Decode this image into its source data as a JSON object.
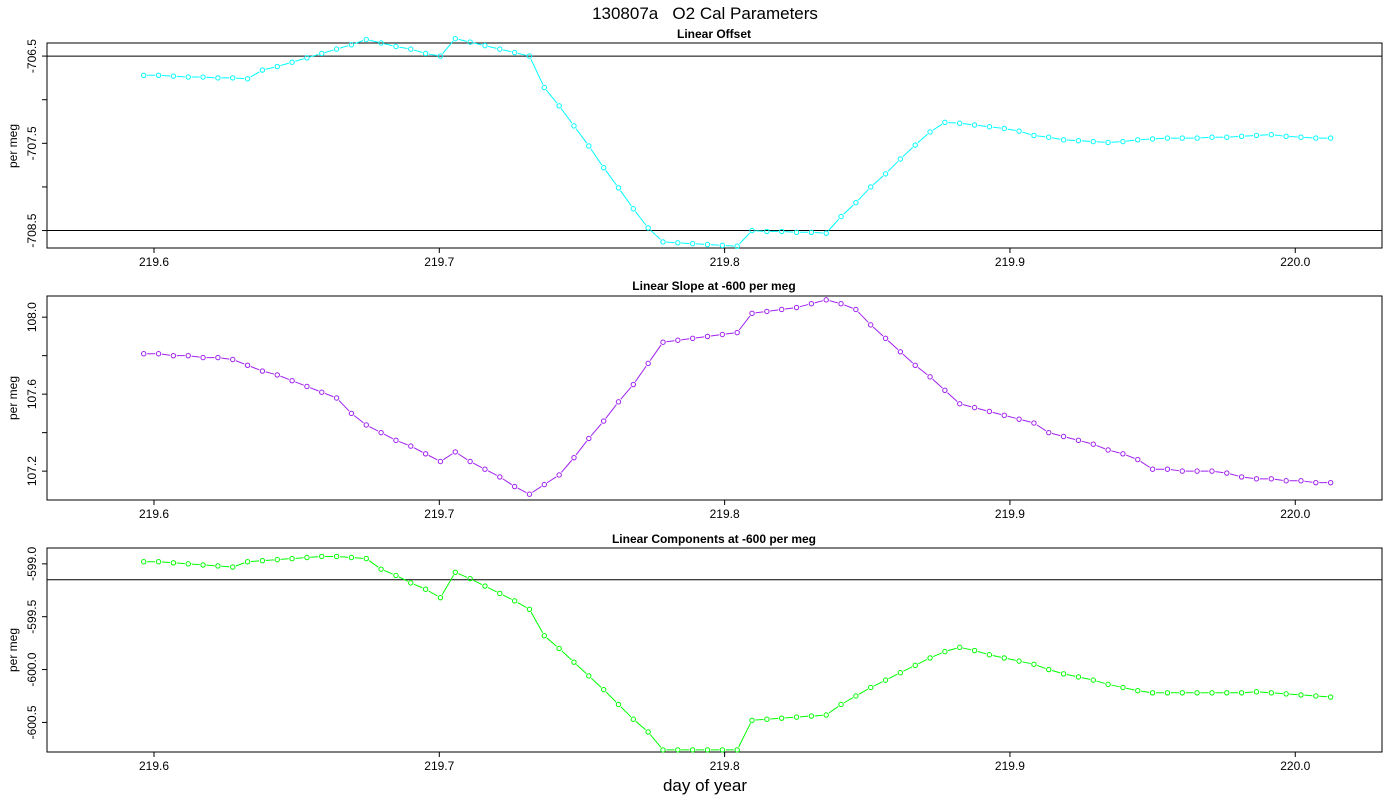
{
  "figure": {
    "title": "130807a   O2 Cal Parameters",
    "xlabel": "day of year"
  },
  "chart_data": [
    {
      "type": "line",
      "title": "Linear Offset",
      "ylabel": "per meg",
      "xlabel": "day of year",
      "color": "#00ffff",
      "xlim": [
        219.5625,
        220.0304
      ],
      "ylim": [
        -708.7,
        -706.35
      ],
      "xticks": [
        219.6,
        219.7,
        219.8,
        219.9,
        220.0
      ],
      "xtick_labels": [
        "219.6",
        "219.7",
        "219.8",
        "219.9",
        "220.0"
      ],
      "yticks": [
        -706.5,
        -707.0,
        -707.5,
        -708.0,
        -708.5
      ],
      "ytick_labels": [
        "-706.5",
        "",
        "-707.5",
        "",
        "-708.5"
      ],
      "hlines": [
        -706.5,
        -708.5
      ],
      "x": [
        219.5964,
        219.6016,
        219.6068,
        219.612,
        219.6172,
        219.6224,
        219.6276,
        219.6328,
        219.638,
        219.6432,
        219.6484,
        219.6536,
        219.6588,
        219.664,
        219.6692,
        219.6744,
        219.6796,
        219.6848,
        219.69,
        219.6952,
        219.7004,
        219.7056,
        219.7108,
        219.716,
        219.7212,
        219.7264,
        219.7316,
        219.7368,
        219.742,
        219.7472,
        219.7524,
        219.7576,
        219.7628,
        219.768,
        219.7732,
        219.7784,
        219.7836,
        219.7888,
        219.794,
        219.7992,
        219.8044,
        219.8096,
        219.8148,
        219.82,
        219.8252,
        219.8304,
        219.8356,
        219.8408,
        219.846,
        219.8512,
        219.8564,
        219.8616,
        219.8668,
        219.872,
        219.8772,
        219.8824,
        219.8876,
        219.8928,
        219.898,
        219.9032,
        219.9084,
        219.9136,
        219.9188,
        219.924,
        219.9292,
        219.9344,
        219.9396,
        219.9448,
        219.95,
        219.9552,
        219.9604,
        219.9656,
        219.9708,
        219.976,
        219.9812,
        219.9864,
        219.9916,
        219.9968,
        220.002,
        220.0072,
        220.0124
      ],
      "y": [
        -706.72,
        -706.72,
        -706.73,
        -706.74,
        -706.74,
        -706.75,
        -706.75,
        -706.76,
        -706.66,
        -706.62,
        -706.57,
        -706.52,
        -706.47,
        -706.42,
        -706.37,
        -706.31,
        -706.35,
        -706.39,
        -706.42,
        -706.47,
        -706.5,
        -706.3,
        -706.34,
        -706.38,
        -706.42,
        -706.46,
        -706.5,
        -706.86,
        -707.07,
        -707.3,
        -707.53,
        -707.78,
        -708.01,
        -708.25,
        -708.47,
        -708.63,
        -708.64,
        -708.65,
        -708.66,
        -708.67,
        -708.68,
        -708.5,
        -708.51,
        -708.51,
        -708.52,
        -708.52,
        -708.53,
        -708.34,
        -708.18,
        -708.0,
        -707.85,
        -707.68,
        -707.52,
        -707.37,
        -707.26,
        -707.27,
        -707.29,
        -707.31,
        -707.33,
        -707.36,
        -707.41,
        -707.43,
        -707.46,
        -707.47,
        -707.48,
        -707.49,
        -707.48,
        -707.46,
        -707.45,
        -707.44,
        -707.44,
        -707.44,
        -707.43,
        -707.43,
        -707.42,
        -707.41,
        -707.4,
        -707.42,
        -707.43,
        -707.44,
        -707.44
      ]
    },
    {
      "type": "line",
      "title": "Linear Slope at -600 per meg",
      "ylabel": "per meg",
      "xlabel": "day of year",
      "color": "#a020f0",
      "xlim": [
        219.5625,
        220.0304
      ],
      "ylim": [
        107.05,
        108.11
      ],
      "xticks": [
        219.6,
        219.7,
        219.8,
        219.9,
        220.0
      ],
      "xtick_labels": [
        "219.6",
        "219.7",
        "219.8",
        "219.9",
        "220.0"
      ],
      "yticks": [
        107.2,
        107.4,
        107.6,
        107.8,
        108.0
      ],
      "ytick_labels": [
        "107.2",
        "",
        "107.6",
        "",
        "108.0"
      ],
      "hlines": [],
      "x": [
        219.5964,
        219.6016,
        219.6068,
        219.612,
        219.6172,
        219.6224,
        219.6276,
        219.6328,
        219.638,
        219.6432,
        219.6484,
        219.6536,
        219.6588,
        219.664,
        219.6692,
        219.6744,
        219.6796,
        219.6848,
        219.69,
        219.6952,
        219.7004,
        219.7056,
        219.7108,
        219.716,
        219.7212,
        219.7264,
        219.7316,
        219.7368,
        219.742,
        219.7472,
        219.7524,
        219.7576,
        219.7628,
        219.768,
        219.7732,
        219.7784,
        219.7836,
        219.7888,
        219.794,
        219.7992,
        219.8044,
        219.8096,
        219.8148,
        219.82,
        219.8252,
        219.8304,
        219.8356,
        219.8408,
        219.846,
        219.8512,
        219.8564,
        219.8616,
        219.8668,
        219.872,
        219.8772,
        219.8824,
        219.8876,
        219.8928,
        219.898,
        219.9032,
        219.9084,
        219.9136,
        219.9188,
        219.924,
        219.9292,
        219.9344,
        219.9396,
        219.9448,
        219.95,
        219.9552,
        219.9604,
        219.9656,
        219.9708,
        219.976,
        219.9812,
        219.9864,
        219.9916,
        219.9968,
        220.002,
        220.0072,
        220.0124
      ],
      "y": [
        107.81,
        107.81,
        107.8,
        107.8,
        107.79,
        107.79,
        107.78,
        107.75,
        107.72,
        107.7,
        107.67,
        107.64,
        107.61,
        107.58,
        107.5,
        107.44,
        107.4,
        107.36,
        107.33,
        107.29,
        107.25,
        107.3,
        107.25,
        107.21,
        107.17,
        107.12,
        107.08,
        107.13,
        107.18,
        107.27,
        107.37,
        107.46,
        107.56,
        107.65,
        107.76,
        107.87,
        107.88,
        107.89,
        107.9,
        107.91,
        107.92,
        108.02,
        108.03,
        108.04,
        108.05,
        108.07,
        108.09,
        108.07,
        108.04,
        107.96,
        107.89,
        107.82,
        107.75,
        107.69,
        107.62,
        107.55,
        107.53,
        107.51,
        107.49,
        107.47,
        107.45,
        107.4,
        107.38,
        107.36,
        107.34,
        107.31,
        107.29,
        107.26,
        107.21,
        107.21,
        107.2,
        107.2,
        107.2,
        107.19,
        107.17,
        107.16,
        107.16,
        107.15,
        107.15,
        107.14,
        107.14
      ]
    },
    {
      "type": "line",
      "title": "Linear Components at -600 per meg",
      "ylabel": "per meg",
      "xlabel": "day of year",
      "color": "#00ff00",
      "xlim": [
        219.5625,
        220.0304
      ],
      "ylim": [
        -600.78,
        -598.85
      ],
      "xticks": [
        219.6,
        219.7,
        219.8,
        219.9,
        220.0
      ],
      "xtick_labels": [
        "219.6",
        "219.7",
        "219.8",
        "219.9",
        "220.0"
      ],
      "yticks": [
        -599.0,
        -599.5,
        -600.0,
        -600.5
      ],
      "ytick_labels": [
        "-599.0",
        "-599.5",
        "-600.0",
        "-600.5"
      ],
      "hlines": [
        -599.15
      ],
      "x": [
        219.5964,
        219.6016,
        219.6068,
        219.612,
        219.6172,
        219.6224,
        219.6276,
        219.6328,
        219.638,
        219.6432,
        219.6484,
        219.6536,
        219.6588,
        219.664,
        219.6692,
        219.6744,
        219.6796,
        219.6848,
        219.69,
        219.6952,
        219.7004,
        219.7056,
        219.7108,
        219.716,
        219.7212,
        219.7264,
        219.7316,
        219.7368,
        219.742,
        219.7472,
        219.7524,
        219.7576,
        219.7628,
        219.768,
        219.7732,
        219.7784,
        219.7836,
        219.7888,
        219.794,
        219.7992,
        219.8044,
        219.8096,
        219.8148,
        219.82,
        219.8252,
        219.8304,
        219.8356,
        219.8408,
        219.846,
        219.8512,
        219.8564,
        219.8616,
        219.8668,
        219.872,
        219.8772,
        219.8824,
        219.8876,
        219.8928,
        219.898,
        219.9032,
        219.9084,
        219.9136,
        219.9188,
        219.924,
        219.9292,
        219.9344,
        219.9396,
        219.9448,
        219.95,
        219.9552,
        219.9604,
        219.9656,
        219.9708,
        219.976,
        219.9812,
        219.9864,
        219.9916,
        219.9968,
        220.002,
        220.0072,
        220.0124
      ],
      "y": [
        -598.98,
        -598.98,
        -598.99,
        -599.0,
        -599.01,
        -599.02,
        -599.03,
        -598.98,
        -598.97,
        -598.96,
        -598.95,
        -598.94,
        -598.93,
        -598.93,
        -598.94,
        -598.95,
        -599.05,
        -599.11,
        -599.18,
        -599.24,
        -599.32,
        -599.08,
        -599.14,
        -599.21,
        -599.28,
        -599.35,
        -599.43,
        -599.68,
        -599.8,
        -599.93,
        -600.06,
        -600.19,
        -600.33,
        -600.47,
        -600.59,
        -600.76,
        -600.76,
        -600.76,
        -600.76,
        -600.76,
        -600.76,
        -600.48,
        -600.47,
        -600.46,
        -600.45,
        -600.44,
        -600.43,
        -600.33,
        -600.25,
        -600.17,
        -600.1,
        -600.03,
        -599.96,
        -599.89,
        -599.83,
        -599.79,
        -599.82,
        -599.86,
        -599.89,
        -599.92,
        -599.95,
        -600.0,
        -600.04,
        -600.07,
        -600.1,
        -600.14,
        -600.17,
        -600.2,
        -600.22,
        -600.22,
        -600.22,
        -600.22,
        -600.22,
        -600.22,
        -600.22,
        -600.21,
        -600.22,
        -600.23,
        -600.24,
        -600.25,
        -600.26
      ]
    }
  ]
}
